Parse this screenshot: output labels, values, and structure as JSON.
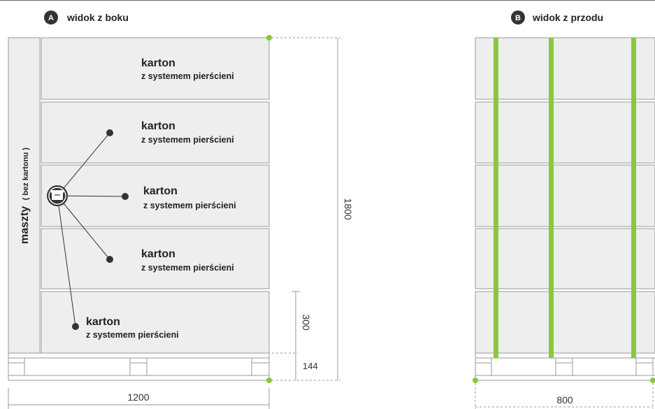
{
  "side_view": {
    "badge": "A",
    "title": "widok z boku",
    "masts_label_main": "maszty",
    "masts_label_sub": "( bez kartonu )"
  },
  "front_view": {
    "badge": "B",
    "title": "widok z przodu"
  },
  "cartons": [
    {
      "title": "karton",
      "subtitle": "z systemem pierścieni"
    },
    {
      "title": "karton",
      "subtitle": "z systemem pierścieni"
    },
    {
      "title": "karton",
      "subtitle": "z systemem pierścieni"
    },
    {
      "title": "karton",
      "subtitle": "z systemem pierścieni"
    },
    {
      "title": "karton",
      "subtitle": "z systemem pierścieni"
    }
  ],
  "dimensions": {
    "total_height": "1800",
    "carton_height": "300",
    "pallet_height": "144",
    "side_width": "1200",
    "front_width": "800"
  },
  "colors": {
    "strap": "#8cc63f",
    "carton_fill": "#eeeeee",
    "outline": "#9a9a9a"
  },
  "icons": {
    "callout_hub": "box-icon"
  }
}
